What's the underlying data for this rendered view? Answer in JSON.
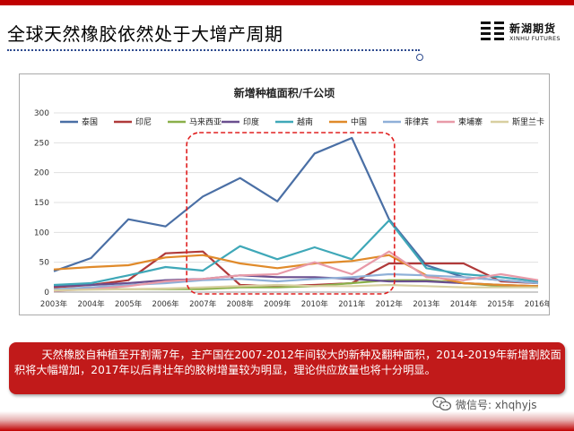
{
  "slide": {
    "title": "全球天然橡胶依然处于大增产周期",
    "logo_cn": "新湖期货",
    "logo_en": "XINHU FUTURES",
    "caption": "天然橡胶自种植至开割需7年，主产国在2007-2012年间较大的新种及翻种面积，2014-2019年新增割胶面积将大幅增加，2017年以后青壮年的胶树增量较为明显，理论供应放量也将十分明显。",
    "watermark": "微信号: xhqhyjs"
  },
  "colors": {
    "accent_red": "#c00000",
    "highlight_box": "#e02020"
  },
  "chart_data": {
    "type": "line",
    "title": "新增种植面积/千公顷",
    "xlabel": "",
    "ylabel": "",
    "x": [
      "2003年",
      "2004年",
      "2005年",
      "2006年",
      "2007年",
      "2008年",
      "2009年",
      "2010年",
      "2011年",
      "2012年",
      "2013年",
      "2014年",
      "2015年",
      "2016年"
    ],
    "ylim": [
      0,
      300
    ],
    "yticks": [
      0,
      50,
      100,
      150,
      200,
      250,
      300
    ],
    "legend_position": "top",
    "grid": "horizontal",
    "highlight_range": [
      "2007年",
      "2012年"
    ],
    "series": [
      {
        "name": "泰国",
        "color": "#4a6fa5",
        "values": [
          35,
          57,
          122,
          110,
          160,
          191,
          152,
          232,
          258,
          122,
          45,
          25,
          20,
          15
        ]
      },
      {
        "name": "印尼",
        "color": "#b03a3a",
        "values": [
          8,
          12,
          20,
          65,
          68,
          12,
          10,
          12,
          15,
          48,
          48,
          48,
          18,
          15
        ]
      },
      {
        "name": "马来西亚",
        "color": "#8ab04a",
        "values": [
          5,
          5,
          5,
          5,
          5,
          8,
          8,
          10,
          15,
          20,
          20,
          15,
          10,
          10
        ]
      },
      {
        "name": "印度",
        "color": "#6a4f8f",
        "values": [
          10,
          12,
          15,
          20,
          22,
          28,
          25,
          25,
          22,
          18,
          18,
          15,
          12,
          10
        ]
      },
      {
        "name": "越南",
        "color": "#3fa8b8",
        "values": [
          12,
          15,
          28,
          42,
          36,
          77,
          55,
          75,
          55,
          120,
          40,
          30,
          25,
          18
        ]
      },
      {
        "name": "中国",
        "color": "#e08a2a",
        "values": [
          38,
          42,
          45,
          58,
          62,
          48,
          40,
          48,
          52,
          62,
          28,
          15,
          12,
          10
        ]
      },
      {
        "name": "菲律宾",
        "color": "#8fb0d8",
        "values": [
          5,
          8,
          12,
          15,
          20,
          22,
          18,
          22,
          25,
          30,
          28,
          25,
          20,
          15
        ]
      },
      {
        "name": "柬埔寨",
        "color": "#e89aa8",
        "values": [
          2,
          5,
          10,
          18,
          22,
          28,
          30,
          50,
          30,
          68,
          25,
          20,
          30,
          20
        ]
      },
      {
        "name": "斯里兰卡",
        "color": "#d8cfa0",
        "values": [
          3,
          4,
          5,
          6,
          8,
          10,
          12,
          10,
          10,
          12,
          10,
          8,
          8,
          8
        ]
      }
    ]
  }
}
